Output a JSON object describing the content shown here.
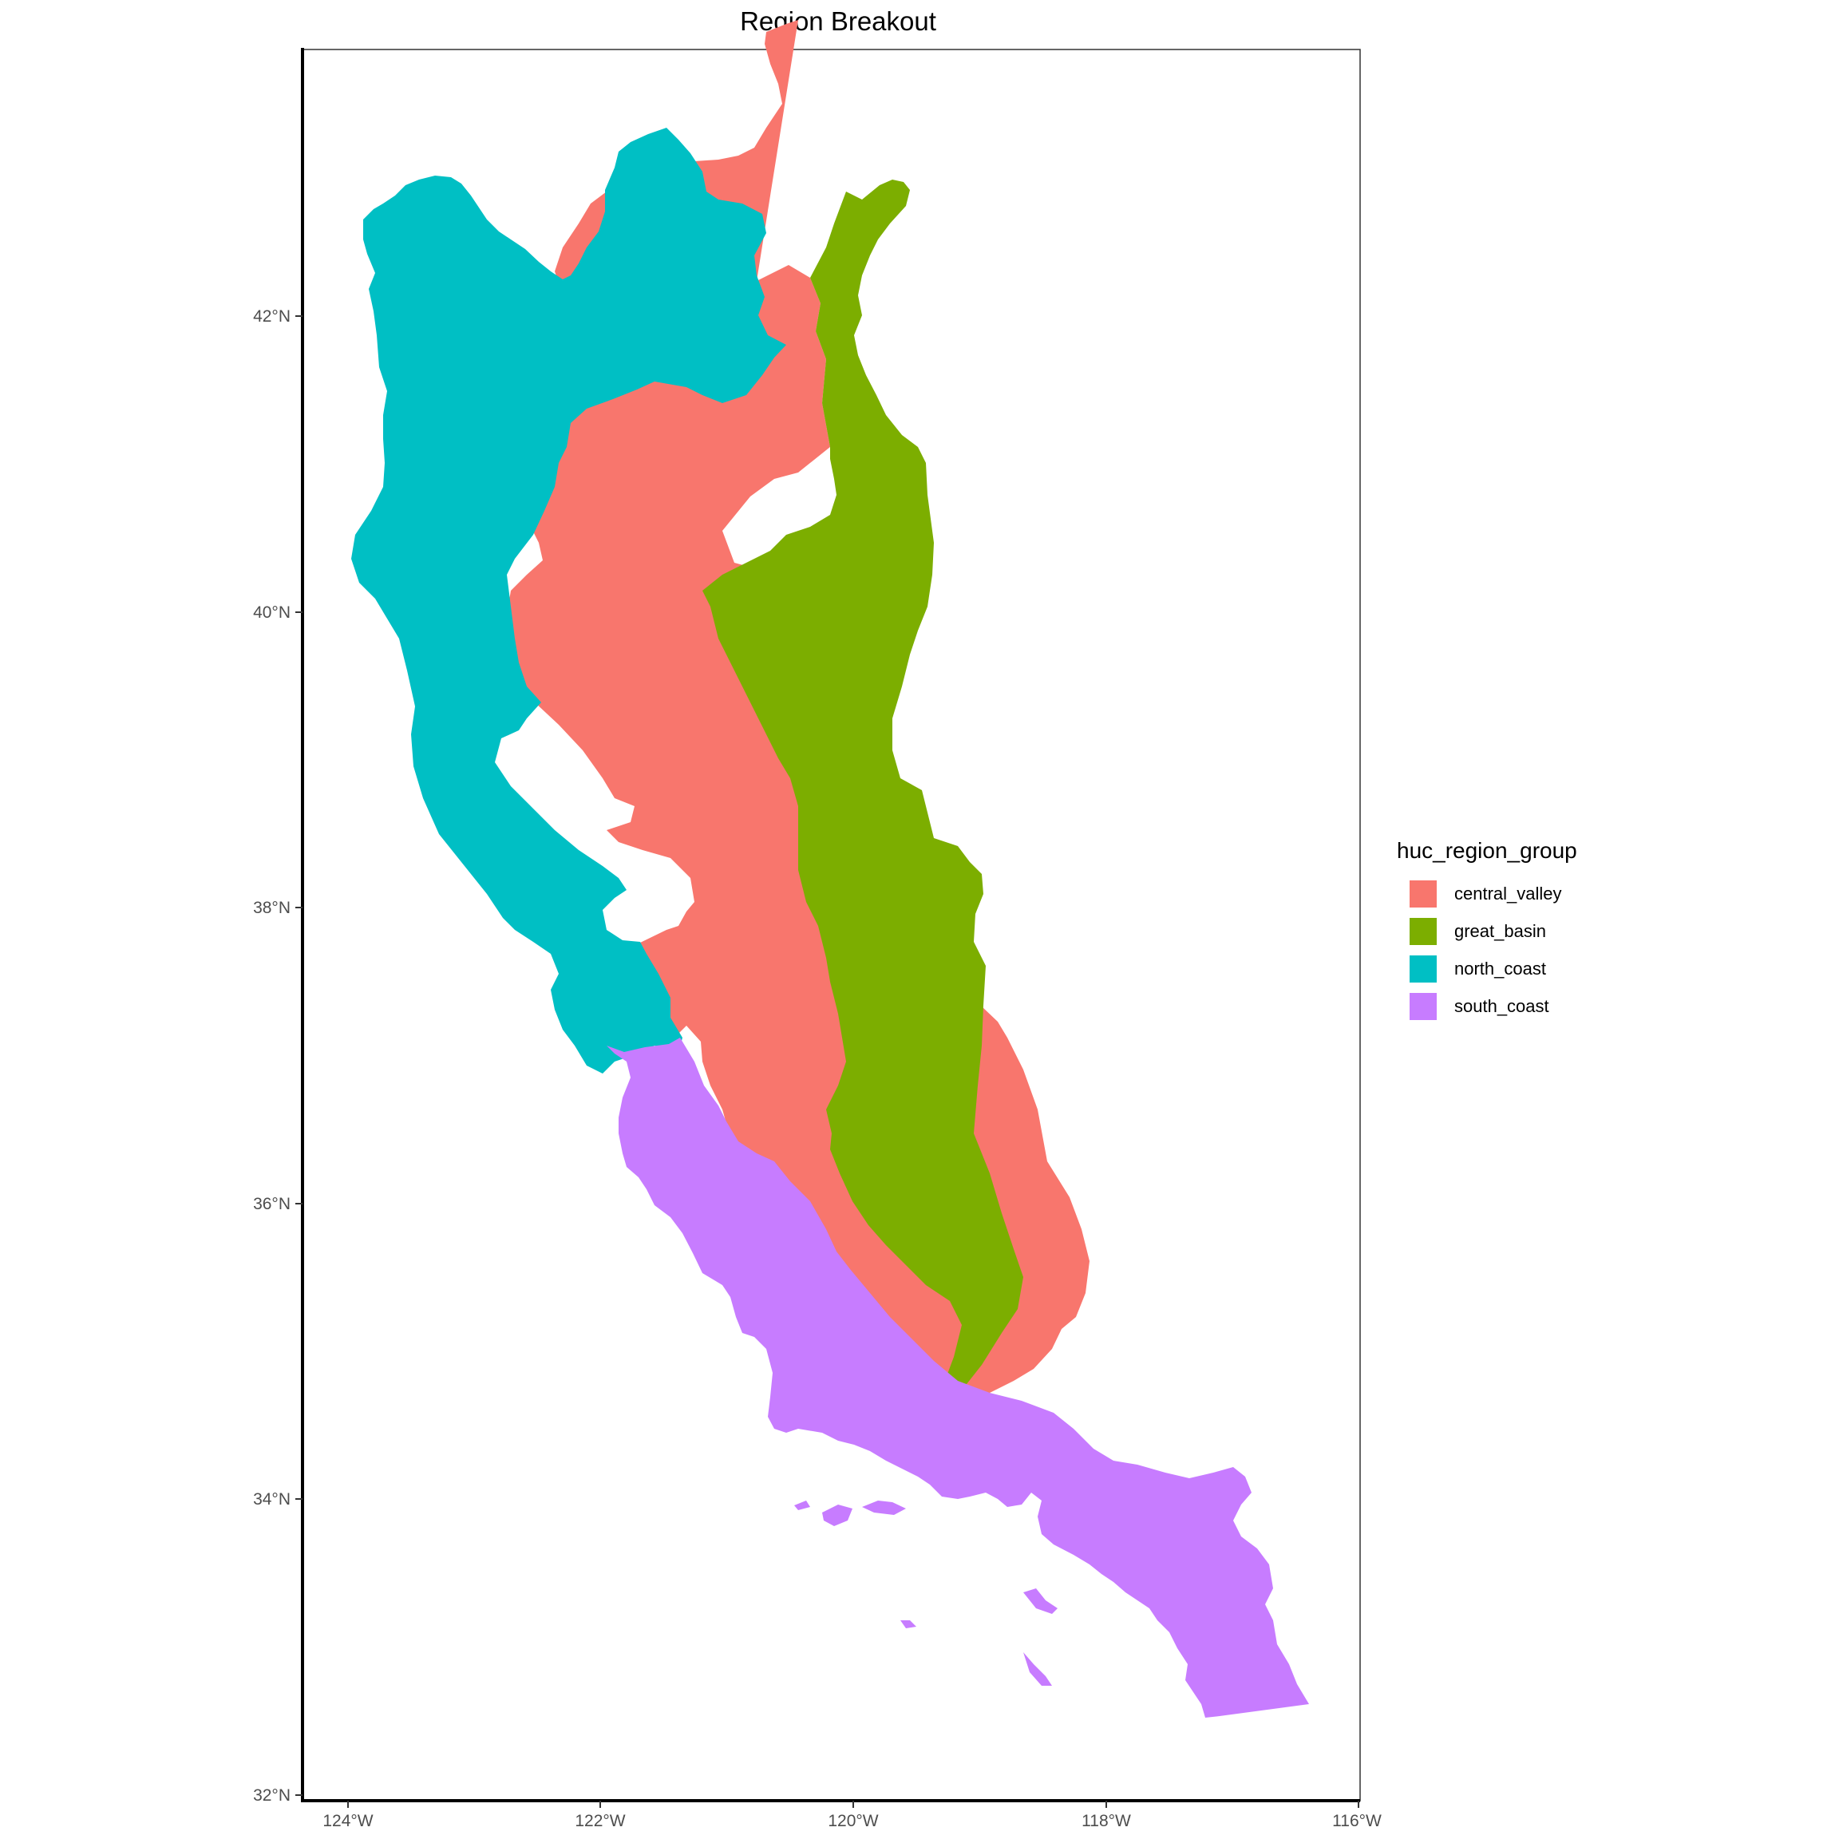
{
  "title": "Region Breakout",
  "legend": {
    "title": "huc_region_group",
    "items": [
      {
        "label": "central_valley",
        "color": "#F8766D"
      },
      {
        "label": "great_basin",
        "color": "#7CAE00"
      },
      {
        "label": "north_coast",
        "color": "#00BFC4"
      },
      {
        "label": "south_coast",
        "color": "#C77CFF"
      }
    ]
  },
  "axes": {
    "y_ticks": [
      "42°N",
      "40°N",
      "38°N",
      "36°N",
      "34°N",
      "32°N"
    ],
    "x_ticks": [
      "124°W",
      "122°W",
      "120°W",
      "118°W",
      "116°W"
    ]
  }
}
